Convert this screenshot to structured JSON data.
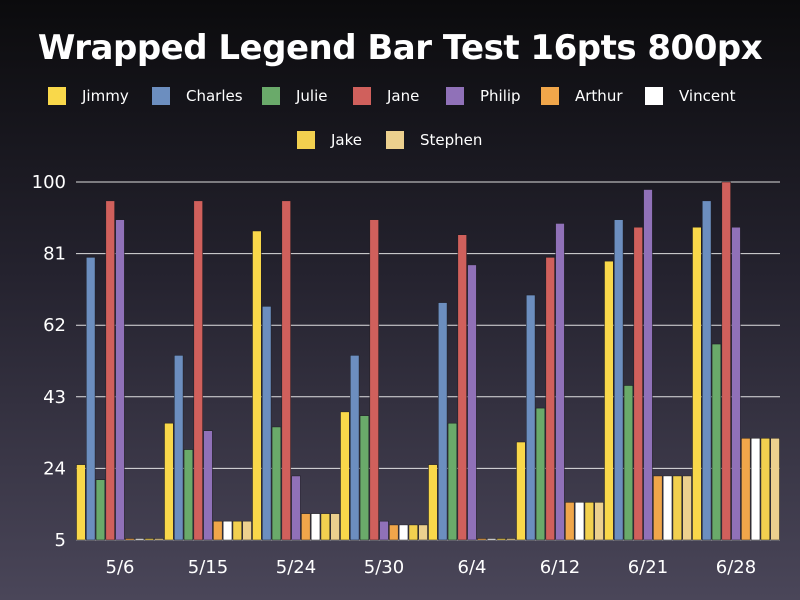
{
  "chart_data": {
    "type": "bar",
    "title": "Wrapped Legend Bar Test 16pts 800px",
    "xlabel": "",
    "ylabel": "",
    "ylim": [
      5,
      100
    ],
    "yticks": [
      5,
      24,
      43,
      62,
      81,
      100
    ],
    "grid": true,
    "legend_position": "top",
    "categories": [
      "5/6",
      "5/15",
      "5/24",
      "5/30",
      "6/4",
      "6/12",
      "6/21",
      "6/28"
    ],
    "series": [
      {
        "name": "Jimmy",
        "color": "#f9d84a",
        "values": [
          25,
          36,
          87,
          39,
          25,
          31,
          79,
          88
        ]
      },
      {
        "name": "Charles",
        "color": "#6c8ebf",
        "values": [
          80,
          54,
          67,
          54,
          68,
          70,
          90,
          95
        ]
      },
      {
        "name": "Julie",
        "color": "#6aaa6a",
        "values": [
          21,
          29,
          35,
          38,
          36,
          40,
          46,
          57
        ]
      },
      {
        "name": "Jane",
        "color": "#d0605c",
        "values": [
          95,
          95,
          95,
          90,
          86,
          80,
          88,
          100
        ]
      },
      {
        "name": "Philip",
        "color": "#9071b8",
        "values": [
          90,
          34,
          22,
          10,
          78,
          89,
          98,
          88
        ]
      },
      {
        "name": "Arthur",
        "color": "#f0a64a",
        "values": [
          5,
          10,
          12,
          9,
          5,
          15,
          22,
          32
        ]
      },
      {
        "name": "Vincent",
        "color": "#ffffff",
        "values": [
          5,
          10,
          12,
          9,
          5,
          15,
          22,
          32
        ]
      },
      {
        "name": "Jake",
        "color": "#f2d04f",
        "values": [
          5,
          10,
          12,
          9,
          5,
          15,
          22,
          32
        ]
      },
      {
        "name": "Stephen",
        "color": "#ecd08e",
        "values": [
          5,
          10,
          12,
          9,
          5,
          15,
          22,
          32
        ]
      }
    ]
  }
}
